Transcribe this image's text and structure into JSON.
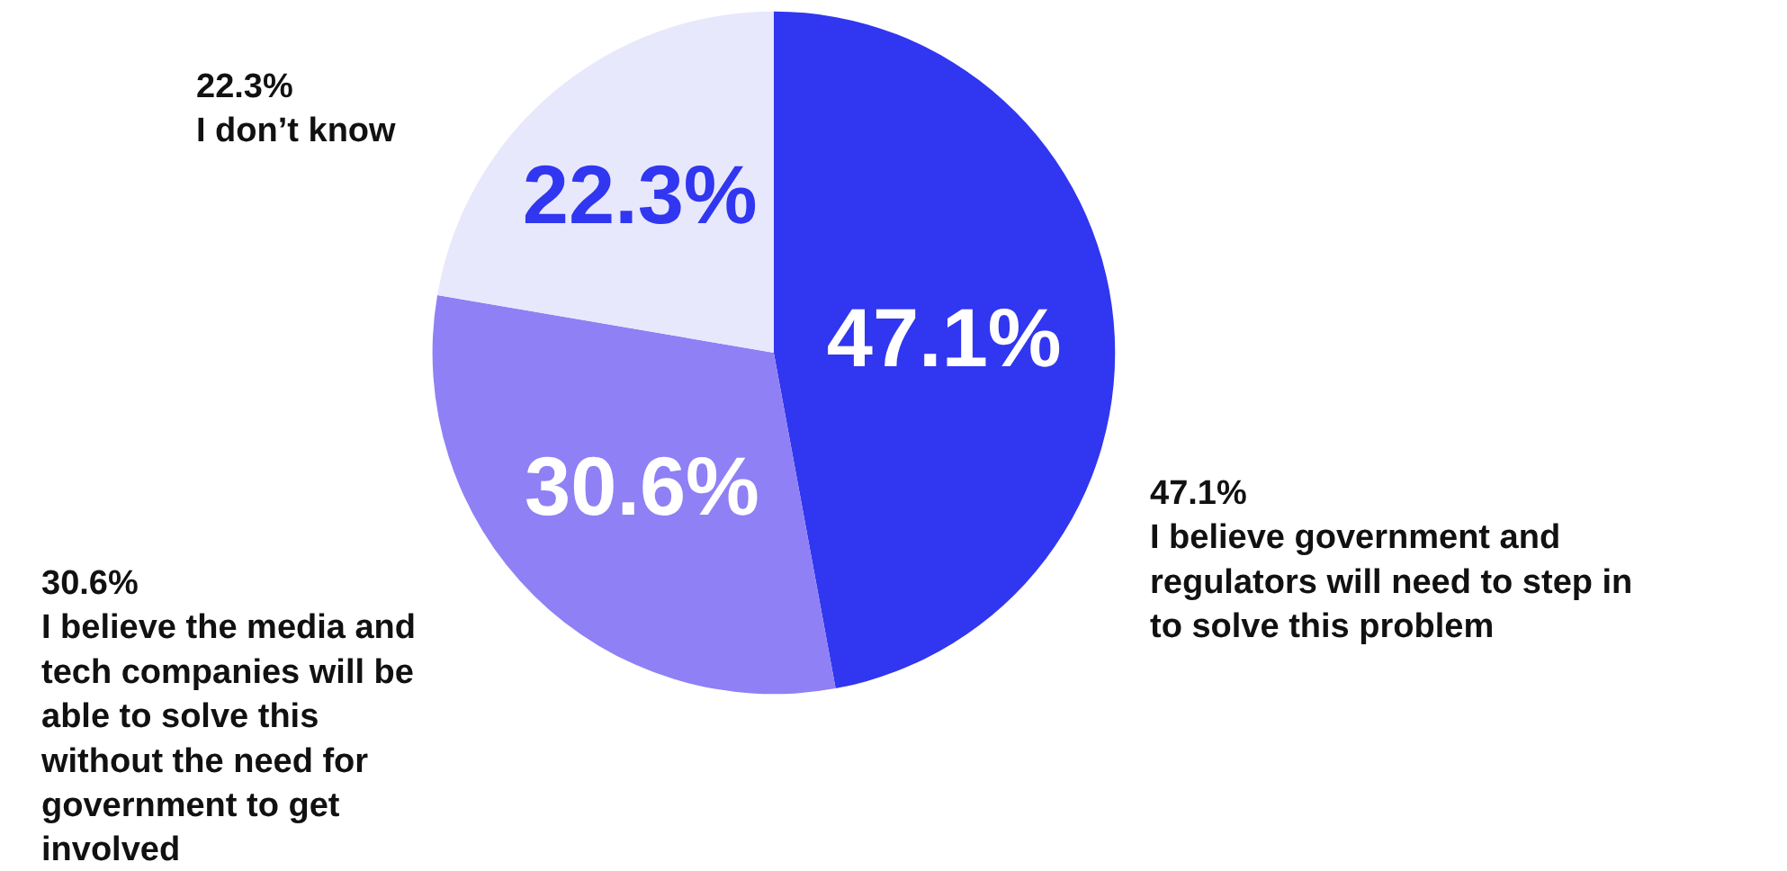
{
  "chart_data": {
    "type": "pie",
    "categories": [
      "I believe government and regulators will need to step in to solve this problem",
      "I believe the media and tech companies will be able to solve this without the need for government to get involved",
      "I don’t know"
    ],
    "values": [
      47.1,
      30.6,
      22.3
    ],
    "value_labels": [
      "47.1%",
      "30.6%",
      "22.3%"
    ],
    "colors": [
      "#3136f0",
      "#8f80f5",
      "#e8e8fc"
    ],
    "legend": false
  }
}
